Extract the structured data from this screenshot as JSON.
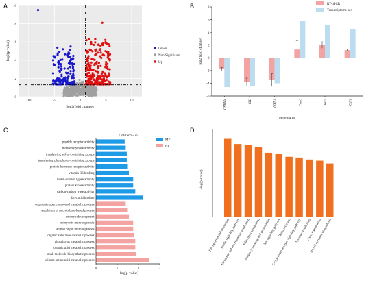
{
  "panels": {
    "a": {
      "letter": "A",
      "xlabel": "log2(fold change)",
      "ylabel": "-log2(p-value)",
      "xticks": [
        "-10",
        "-5",
        "0",
        "5",
        "10"
      ],
      "yticks": [
        "0",
        "2",
        "4",
        "6",
        "8",
        "10"
      ],
      "legend": [
        "Down",
        "Non Significant",
        "Up"
      ],
      "colors": {
        "down": "#1a1acc",
        "ns": "#a0a0a0",
        "up": "#e01010",
        "bg": "#ebebeb"
      }
    },
    "b": {
      "letter": "B",
      "ylabel": "log2(fold change)",
      "xlabel": "gene name",
      "yticks": [
        "-6",
        "-4",
        "-2",
        "0",
        "2",
        "4",
        "6",
        "8"
      ],
      "legend": [
        "RT-qPCR",
        "Transcriptome seq"
      ],
      "colors": {
        "rt": "#f4a3a3",
        "seq": "#bcdcf0"
      }
    },
    "c": {
      "letter": "C",
      "title": "GO-term-up",
      "xlabel": "−log(p-value)",
      "xticks": [
        "0",
        "1",
        "2",
        "3"
      ],
      "legend": [
        "MF",
        "BP"
      ],
      "colors": {
        "mf": "#1e9be6",
        "bp": "#f4a3a3"
      }
    },
    "d": {
      "letter": "D",
      "ylabel": "-log(p-value)",
      "color": "#f07020"
    }
  },
  "chart_data": [
    {
      "type": "scatter",
      "panel": "A",
      "xlim": [
        -12,
        12
      ],
      "ylim": [
        0,
        10
      ],
      "threshold_y": 1.3,
      "threshold_x": [
        -1,
        1
      ],
      "outliers": [
        {
          "x": -8.2,
          "y": 9.5,
          "class": "Down"
        },
        {
          "x": 4.3,
          "y": 8.1,
          "class": "Up"
        },
        {
          "x": 5.2,
          "y": 5.8,
          "class": "Up"
        }
      ]
    },
    {
      "type": "bar",
      "panel": "B",
      "categories": [
        "CHRM4",
        "GHI",
        "OXT-1",
        "Fmo3",
        "Rxra",
        "Cd11"
      ],
      "ylim": [
        -6,
        8
      ],
      "series": [
        {
          "name": "RT-qPCR",
          "values": [
            -1.8,
            -3.8,
            -3.5,
            1.3,
            2.0,
            1.2
          ],
          "errors": [
            0.3,
            0.6,
            1.0,
            1.4,
            0.5,
            0.2
          ]
        },
        {
          "name": "Transcriptome seq",
          "values": [
            -4.6,
            -4.5,
            -4.0,
            5.8,
            5.2,
            4.5
          ]
        }
      ]
    },
    {
      "type": "bar",
      "panel": "C",
      "orientation": "horizontal",
      "title": "GO-term-up",
      "xlim": [
        0,
        3
      ],
      "categories": [
        "peptide receptor activity",
        "monooxygenase activity",
        "transferring sulfur-containing groups",
        "transferring phosphorus-containing groups",
        "protein-hormone receptor activity",
        "vitamin B6 binding",
        "biotin-protein ligase activity",
        "protein kinase activity",
        "carbon-carbon lyase activity",
        "fatty acid binding",
        "organonitrogen compound metabolic process",
        "regulation of microtubule-based process",
        "embryo development",
        "embryonic morphogenesis",
        "animal organ morphogenesis",
        "organic substance catabolic process",
        "phosphorus metabolic process",
        "organic acid metabolic process",
        "small molecule biosynthetic process",
        "cellular amino acid metabolic process"
      ],
      "values": [
        1.35,
        1.4,
        1.45,
        1.45,
        1.5,
        1.55,
        1.75,
        1.75,
        1.85,
        2.2,
        1.4,
        1.5,
        1.55,
        1.75,
        1.75,
        1.8,
        1.85,
        1.85,
        1.9,
        2.5
      ],
      "groups": [
        "MF",
        "MF",
        "MF",
        "MF",
        "MF",
        "MF",
        "MF",
        "MF",
        "MF",
        "MF",
        "BP",
        "BP",
        "BP",
        "BP",
        "BP",
        "BP",
        "BP",
        "BP",
        "BP",
        "BP"
      ]
    },
    {
      "type": "bar",
      "panel": "D",
      "categories": [
        "Fat digestion and absorption",
        "Insulin signaling pathway",
        "Nicotinate and nicotinamide metabolism",
        "Ether lipid metabolism",
        "Antigen processing and presentation",
        "Ras signaling pathway",
        "Renin secretion",
        "C-type lectin receptor signaling pathway",
        "Tyrosine metabolism",
        "Axon regeneration",
        "Steroid hormone biosynthesis"
      ],
      "values": [
        1.95,
        1.82,
        1.8,
        1.75,
        1.6,
        1.57,
        1.5,
        1.48,
        1.43,
        1.4,
        1.33
      ],
      "ylim": [
        0,
        2.2
      ]
    }
  ]
}
